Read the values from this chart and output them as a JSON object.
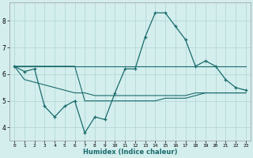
{
  "title": "",
  "xlabel": "Humidex (Indice chaleur)",
  "background_color": "#d4eeee",
  "grid_color": "#aed4d4",
  "line_color": "#1a6b6b",
  "x_ticks": [
    0,
    1,
    2,
    3,
    4,
    5,
    6,
    7,
    8,
    9,
    10,
    11,
    12,
    13,
    14,
    15,
    16,
    17,
    18,
    19,
    20,
    21,
    22,
    23
  ],
  "ylim": [
    3.5,
    8.7
  ],
  "xlim": [
    -0.5,
    23.5
  ],
  "yticks": [
    4,
    5,
    6,
    7,
    8
  ],
  "series": [
    [
      6.3,
      6.1,
      6.2,
      4.8,
      4.4,
      4.8,
      5.0,
      3.8,
      4.4,
      4.3,
      5.3,
      6.2,
      6.2,
      7.4,
      8.3,
      8.3,
      7.8,
      7.3,
      6.3,
      6.5,
      6.3,
      5.8,
      5.5,
      5.4
    ],
    [
      6.3,
      6.3,
      6.3,
      6.3,
      6.3,
      6.3,
      6.3,
      6.3,
      6.3,
      6.3,
      6.3,
      6.3,
      6.3,
      6.3,
      6.3,
      6.3,
      6.3,
      6.3,
      6.3,
      6.3,
      6.3,
      6.3,
      6.3,
      6.3
    ],
    [
      6.3,
      6.3,
      6.3,
      6.3,
      6.3,
      6.3,
      6.3,
      5.0,
      5.0,
      5.0,
      5.0,
      5.0,
      5.0,
      5.0,
      5.0,
      5.1,
      5.1,
      5.1,
      5.2,
      5.3,
      5.3,
      5.3,
      5.3,
      5.3
    ],
    [
      6.3,
      5.8,
      5.7,
      5.6,
      5.5,
      5.4,
      5.3,
      5.3,
      5.2,
      5.2,
      5.2,
      5.2,
      5.2,
      5.2,
      5.2,
      5.2,
      5.2,
      5.2,
      5.3,
      5.3,
      5.3,
      5.3,
      5.3,
      5.3
    ]
  ]
}
